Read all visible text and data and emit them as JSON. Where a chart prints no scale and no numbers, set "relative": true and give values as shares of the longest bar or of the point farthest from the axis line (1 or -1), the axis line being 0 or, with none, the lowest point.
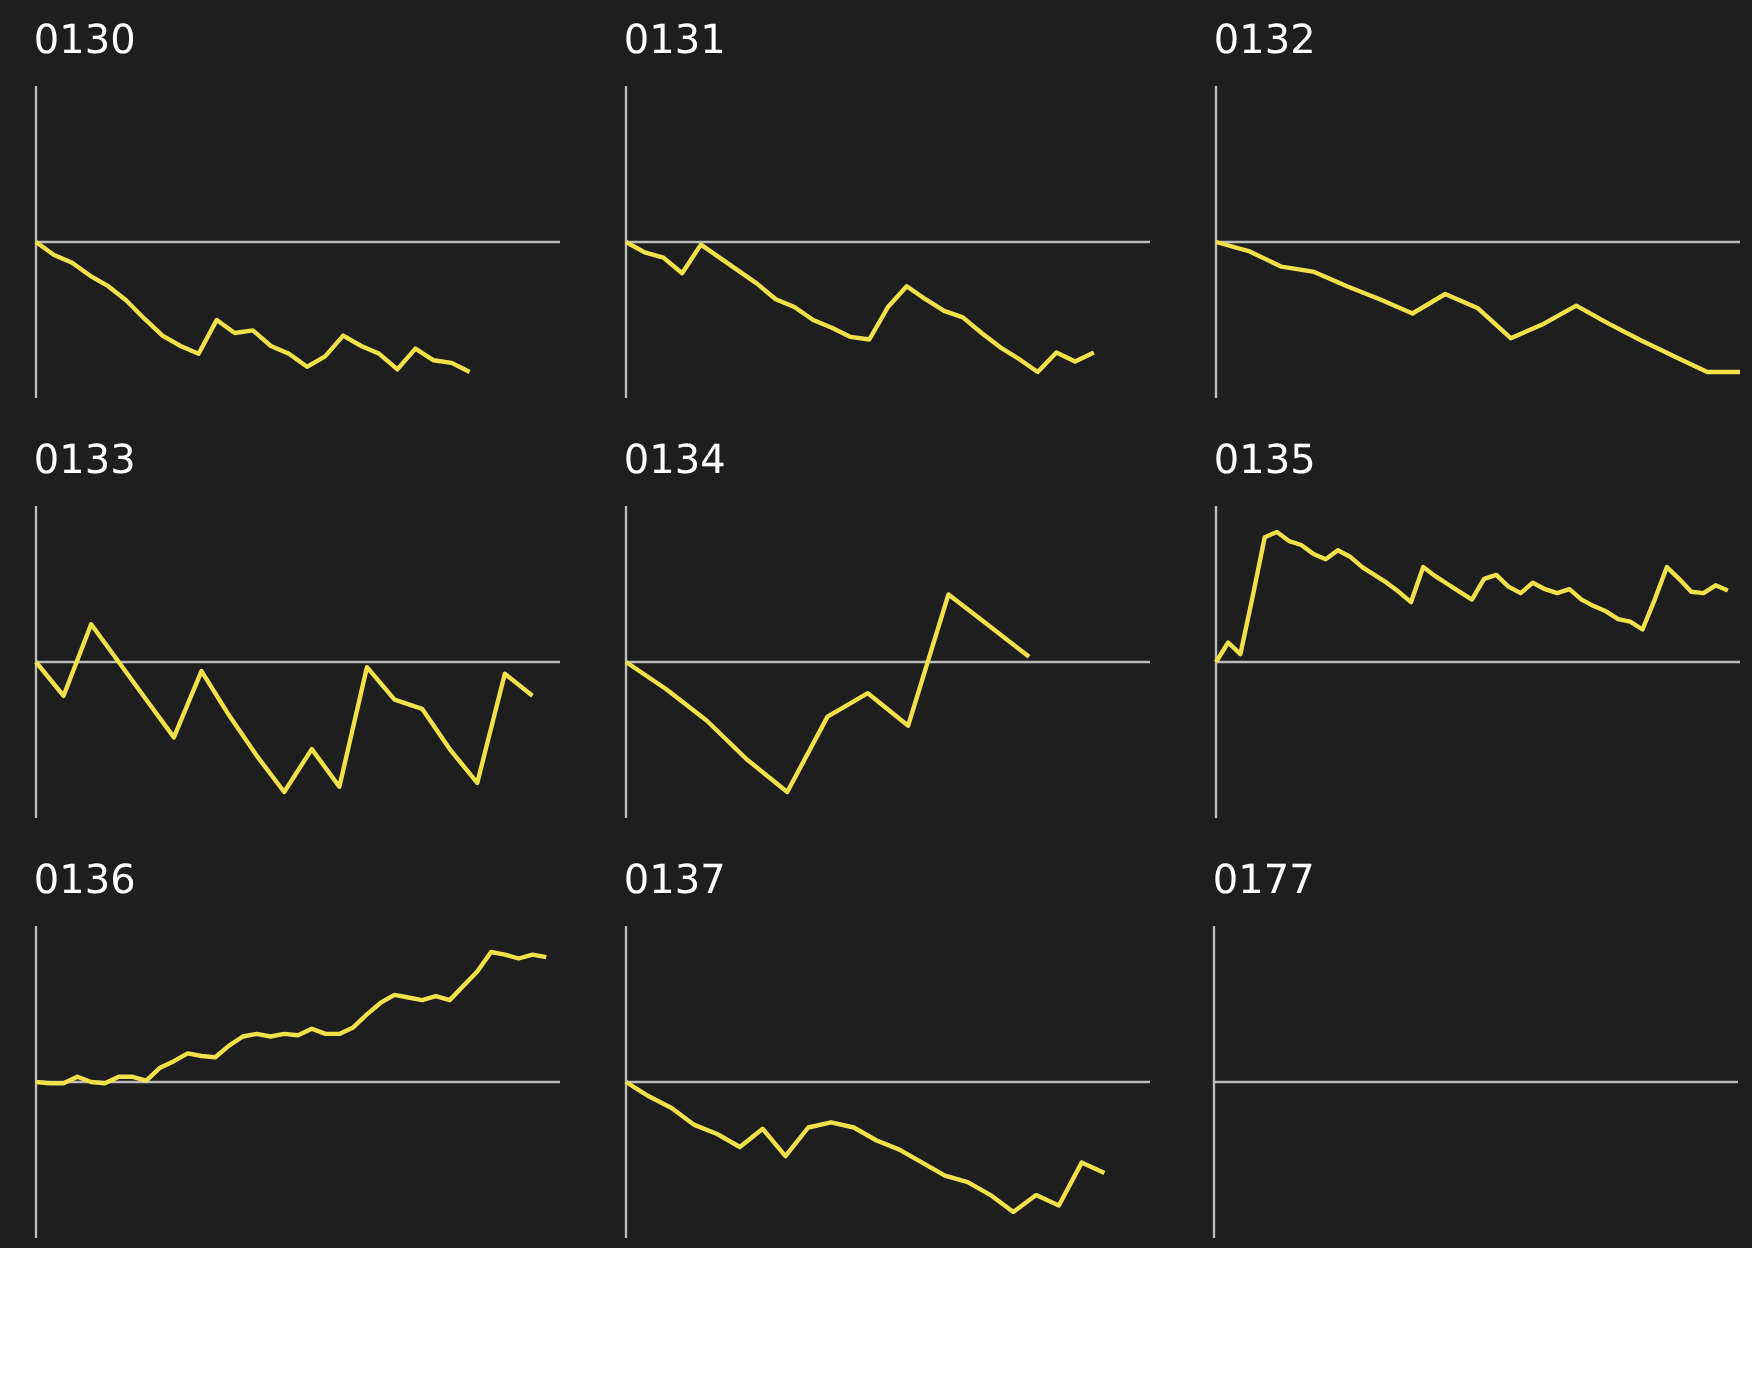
{
  "chart_data": [
    {
      "type": "line",
      "title": "0130",
      "relative": true,
      "tick_labels": false,
      "categories": [
        null,
        null,
        null,
        null,
        null,
        null,
        null,
        null,
        null,
        null,
        null,
        null,
        null,
        null,
        null,
        null,
        null,
        null,
        null,
        null,
        null,
        null,
        null,
        null,
        null,
        null,
        null,
        null,
        null,
        null
      ],
      "series": [
        {
          "color": "#f0e04a",
          "values": [
            0,
            -0.1,
            -0.16,
            -0.26,
            -0.34,
            -0.45,
            -0.59,
            -0.72,
            -0.8,
            -0.86,
            -0.6,
            -0.7,
            -0.68,
            -0.8,
            -0.86,
            -0.96,
            -0.88,
            -0.72,
            -0.8,
            -0.86,
            -0.98,
            -0.82,
            -0.91,
            -0.93,
            -1,
            null,
            null,
            null,
            null,
            null
          ]
        }
      ]
    },
    {
      "type": "line",
      "title": "0131",
      "relative": true,
      "tick_labels": false,
      "categories": [
        null,
        null,
        null,
        null,
        null,
        null,
        null,
        null,
        null,
        null,
        null,
        null,
        null,
        null,
        null,
        null,
        null,
        null,
        null,
        null,
        null,
        null,
        null,
        null,
        null,
        null,
        null,
        null,
        null
      ],
      "series": [
        {
          "color": "#f0e04a",
          "values": [
            0,
            -0.08,
            -0.12,
            -0.24,
            -0.02,
            -0.12,
            -0.22,
            -0.32,
            -0.44,
            -0.5,
            -0.6,
            -0.66,
            -0.73,
            -0.75,
            -0.5,
            -0.34,
            -0.44,
            -0.53,
            -0.58,
            -0.7,
            -0.81,
            -0.9,
            -1,
            -0.85,
            -0.92,
            -0.85,
            null,
            null,
            null
          ]
        }
      ]
    },
    {
      "type": "line",
      "title": "0132",
      "relative": true,
      "tick_labels": false,
      "categories": [
        null,
        null,
        null,
        null,
        null,
        null,
        null,
        null,
        null,
        null,
        null,
        null,
        null,
        null,
        null,
        null,
        null
      ],
      "series": [
        {
          "color": "#f0e04a",
          "values": [
            0,
            -0.07,
            -0.19,
            -0.23,
            -0.34,
            -0.44,
            -0.55,
            -0.4,
            -0.51,
            -0.74,
            -0.63,
            -0.49,
            -0.63,
            -0.76,
            -0.88,
            -1,
            -1
          ]
        }
      ]
    },
    {
      "type": "line",
      "title": "0133",
      "relative": true,
      "tick_labels": false,
      "categories": [
        null,
        null,
        null,
        null,
        null,
        null,
        null,
        null,
        null,
        null,
        null,
        null,
        null,
        null,
        null,
        null,
        null,
        null,
        null,
        null
      ],
      "series": [
        {
          "color": "#f0e04a",
          "values": [
            0,
            -0.26,
            0.29,
            0,
            -0.29,
            -0.58,
            -0.07,
            -0.41,
            -0.72,
            -1,
            -0.67,
            -0.96,
            -0.04,
            -0.29,
            -0.36,
            -0.67,
            -0.93,
            -0.09,
            -0.26,
            null
          ]
        }
      ]
    },
    {
      "type": "line",
      "title": "0134",
      "relative": true,
      "tick_labels": false,
      "categories": [
        null,
        null,
        null,
        null,
        null,
        null,
        null,
        null,
        null,
        null,
        null,
        null,
        null,
        null
      ],
      "series": [
        {
          "color": "#f0e04a",
          "values": [
            0,
            -0.21,
            -0.45,
            -0.75,
            -1,
            -0.42,
            -0.24,
            -0.49,
            0.52,
            0.28,
            0.04,
            null,
            null,
            null
          ]
        }
      ]
    },
    {
      "type": "line",
      "title": "0135",
      "relative": true,
      "tick_labels": false,
      "categories": [
        null,
        null,
        null,
        null,
        null,
        null,
        null,
        null,
        null,
        null,
        null,
        null,
        null,
        null,
        null,
        null,
        null,
        null,
        null,
        null,
        null,
        null,
        null,
        null,
        null,
        null,
        null,
        null,
        null,
        null,
        null,
        null,
        null,
        null,
        null,
        null,
        null,
        null,
        null,
        null,
        null,
        null,
        null,
        null
      ],
      "series": [
        {
          "color": "#f0e04a",
          "values": [
            0,
            0.15,
            0.06,
            0.5,
            0.96,
            1,
            0.93,
            0.9,
            0.83,
            0.79,
            0.86,
            0.81,
            0.73,
            0.67,
            0.61,
            0.54,
            0.46,
            0.73,
            0.66,
            0.6,
            0.54,
            0.48,
            0.64,
            0.67,
            0.58,
            0.53,
            0.61,
            0.56,
            0.53,
            0.56,
            0.48,
            0.43,
            0.39,
            0.33,
            0.31,
            0.25,
            0.48,
            0.73,
            0.64,
            0.54,
            0.53,
            0.59,
            0.55,
            null
          ]
        }
      ]
    },
    {
      "type": "line",
      "title": "0136",
      "relative": true,
      "tick_labels": false,
      "categories": [
        null,
        null,
        null,
        null,
        null,
        null,
        null,
        null,
        null,
        null,
        null,
        null,
        null,
        null,
        null,
        null,
        null,
        null,
        null,
        null,
        null,
        null,
        null,
        null,
        null,
        null,
        null,
        null,
        null,
        null,
        null,
        null,
        null,
        null,
        null,
        null,
        null,
        null,
        null
      ],
      "series": [
        {
          "color": "#f0e04a",
          "values": [
            0,
            -0.01,
            -0.01,
            0.04,
            0,
            -0.01,
            0.04,
            0.04,
            0.01,
            0.11,
            0.16,
            0.22,
            0.2,
            0.19,
            0.28,
            0.35,
            0.37,
            0.35,
            0.37,
            0.36,
            0.41,
            0.37,
            0.37,
            0.42,
            0.52,
            0.61,
            0.67,
            0.65,
            0.63,
            0.66,
            0.63,
            0.74,
            0.85,
            1,
            0.98,
            0.95,
            0.98,
            0.96,
            null
          ]
        }
      ]
    },
    {
      "type": "line",
      "title": "0137",
      "relative": true,
      "tick_labels": false,
      "categories": [
        null,
        null,
        null,
        null,
        null,
        null,
        null,
        null,
        null,
        null,
        null,
        null,
        null,
        null,
        null,
        null,
        null,
        null,
        null,
        null,
        null,
        null,
        null,
        null
      ],
      "series": [
        {
          "color": "#f0e04a",
          "values": [
            0,
            -0.11,
            -0.2,
            -0.33,
            -0.4,
            -0.5,
            -0.36,
            -0.57,
            -0.35,
            -0.31,
            -0.35,
            -0.45,
            -0.52,
            -0.62,
            -0.72,
            -0.77,
            -0.87,
            -1,
            -0.87,
            -0.95,
            -0.62,
            -0.7,
            null,
            null
          ]
        }
      ]
    },
    {
      "type": "other",
      "title": "0177"
    }
  ]
}
